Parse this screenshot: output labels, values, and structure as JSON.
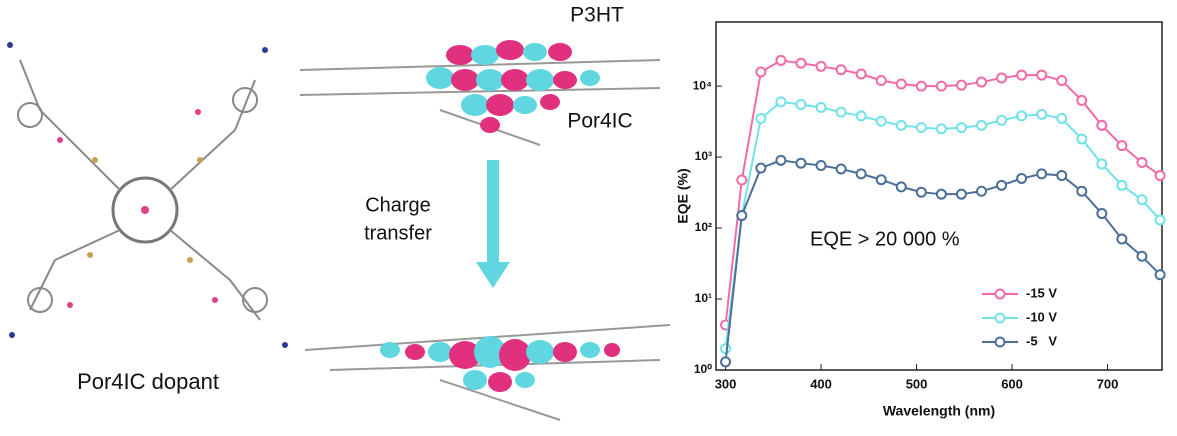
{
  "figure_labels": {
    "dopant": "Por4IC dopant",
    "polymer": "P3HT",
    "acceptor": "Por4IC",
    "process_line1": "Charge",
    "process_line2": "transfer"
  },
  "chart_data": {
    "type": "line",
    "x_label": "Wavelength (nm)",
    "y_label": "EQE (%)",
    "annotation": "EQE > 20 000 %",
    "x": [
      300,
      317,
      337,
      358,
      379,
      400,
      421,
      442,
      463,
      484,
      505,
      526,
      547,
      568,
      589,
      610,
      631,
      652,
      673,
      694,
      715,
      736,
      755
    ],
    "series": [
      {
        "name": "-15 V",
        "color": "#f36aa9",
        "values": [
          4.3,
          475,
          15800,
          23000,
          21000,
          19000,
          17000,
          14800,
          12000,
          10700,
          10000,
          10000,
          10300,
          11400,
          13000,
          14300,
          14300,
          12000,
          6300,
          2800,
          1450,
          840,
          550
        ]
      },
      {
        "name": "-10 V",
        "color": "#72e2ea",
        "values": [
          2,
          150,
          3500,
          6000,
          5500,
          5000,
          4300,
          3800,
          3200,
          2800,
          2600,
          2500,
          2600,
          2800,
          3300,
          3800,
          4000,
          3500,
          1800,
          800,
          400,
          250,
          130
        ]
      },
      {
        "name": "-5   V",
        "color": "#4b6f98",
        "values": [
          1.3,
          150,
          700,
          900,
          820,
          760,
          680,
          580,
          480,
          380,
          320,
          300,
          300,
          330,
          400,
          500,
          580,
          550,
          330,
          160,
          70,
          40,
          22
        ]
      }
    ],
    "xlim": [
      290,
      757
    ],
    "ylim": [
      1,
      80000
    ],
    "log_y": true,
    "legend": "lower right",
    "xticks": [
      300,
      400,
      500,
      600,
      700
    ],
    "yticks": [
      {
        "value": 1,
        "label": "10⁰"
      },
      {
        "value": 10,
        "label": "10¹"
      },
      {
        "value": 100,
        "label": "10²"
      },
      {
        "value": 1000,
        "label": "10³"
      },
      {
        "value": 10000,
        "label": "10⁴"
      }
    ]
  }
}
